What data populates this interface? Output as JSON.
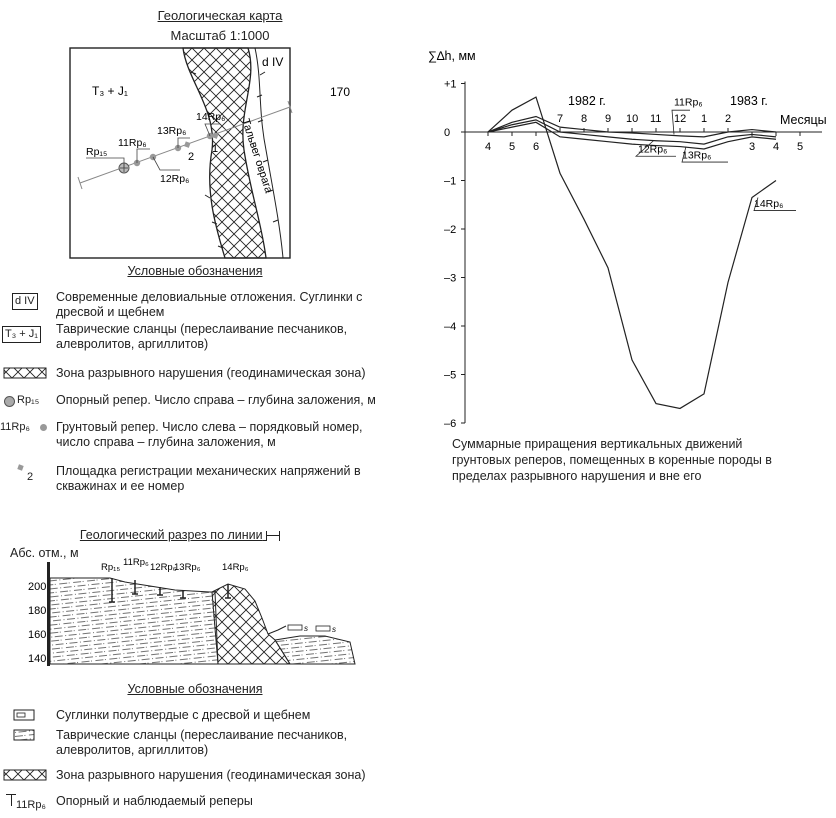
{
  "map": {
    "title": "Геологическая карта",
    "scale": "Масштаб 1:1000",
    "unit_t3j1": "T₃ + J₁",
    "unit_div": "d IV",
    "value_170": "170",
    "labels": {
      "rp15": "Rp₁₅",
      "r11": "11Rp₆",
      "r12": "12Rp₆",
      "r13": "13Rp₆",
      "r14": "14Rp₆",
      "site1": "1",
      "site2": "2",
      "thalweg": "Тальвег оврага"
    }
  },
  "legend1": {
    "title": "Условные обозначения",
    "sym_div": "d IV",
    "sym_t3j1": "T₃ + J₁",
    "sym_rp15": "Rp₁₅",
    "sym_11rp6": "11Rp₆",
    "sym_site": "2",
    "items": [
      "Современные деловиальные отложения. Суглинки с дресвой и щебнем",
      "Таврические сланцы (переслаивание песчаников, алевролитов, аргиллитов)",
      "Зона разрывного нарушения (геодинамическая зона)",
      "Опорный репер. Число справа – глубина заложения, м",
      "Грунтовый репер. Число слева – порядковый номер, число справа – глубина заложения, м",
      "Площадка регистрации механических напряжений в скважинах и ее номер"
    ]
  },
  "section": {
    "title": "Геологический разрез по линии",
    "yaxis": "Абс. отм., м",
    "ticks": [
      "200",
      "180",
      "160",
      "140"
    ],
    "labels": {
      "rp15": "Rp₁₅",
      "r11": "11Rp₆",
      "r12": "12Rp₆",
      "r13": "13Rp₆",
      "r14": "14Rp₆",
      "s": "s"
    }
  },
  "legend2": {
    "title": "Условные обозначения",
    "sym_rep": "11Rp₆",
    "items": [
      "Суглинки полутвердые с дресвой и щебнем",
      "Таврические сланцы (переслаивание песчаников, алевролитов, аргиллитов)",
      "Зона разрывного нарушения (геодинамическая зона)",
      "Опорный и наблюдаемый реперы"
    ]
  },
  "chart_data": {
    "type": "line",
    "ylabel": "∑∆h, мм",
    "xlabel": "Месяцы",
    "ylim": [
      -6,
      1
    ],
    "year_labels": [
      "1982 г.",
      "1983 г."
    ],
    "upper_ticks": [
      "7",
      "8",
      "9",
      "10",
      "11",
      "12",
      "1",
      "2"
    ],
    "lower_ticks": [
      "4",
      "5",
      "6",
      "3",
      "4",
      "5"
    ],
    "y_ticks": [
      "+1",
      "0",
      "–1",
      "–2",
      "–3",
      "–4",
      "–5",
      "–6"
    ],
    "caption": "Суммарные приращения вертикальных движений грунтовых реперов, помещенных в коренные породы в пределах разрывного нарушения и вне его",
    "x_positions": [
      0,
      1,
      2,
      3,
      4,
      5,
      6,
      7,
      8,
      9,
      10,
      11,
      12,
      13
    ],
    "series": [
      {
        "name": "14Rp₆",
        "values": [
          0,
          0.45,
          0.72,
          -0.85,
          -1.8,
          -2.8,
          -4.7,
          -5.6,
          -5.7,
          -5.4,
          -3.1,
          -1.35,
          -1.0,
          null
        ]
      },
      {
        "name": "13Rp₆",
        "values": [
          0,
          0.1,
          0.2,
          -0.1,
          -0.15,
          -0.2,
          -0.25,
          -0.28,
          -0.3,
          -0.35,
          -0.2,
          -0.1,
          -0.15,
          null
        ]
      },
      {
        "name": "12Rp₆",
        "values": [
          0,
          0.15,
          0.25,
          0.0,
          -0.05,
          -0.1,
          -0.15,
          -0.18,
          -0.2,
          -0.25,
          -0.1,
          -0.05,
          -0.1,
          null
        ]
      },
      {
        "name": "11Rp₆",
        "values": [
          0,
          0.2,
          0.32,
          0.1,
          0.05,
          0.0,
          -0.02,
          -0.05,
          -0.08,
          -0.1,
          0.0,
          0.05,
          0.0,
          null
        ]
      }
    ]
  }
}
